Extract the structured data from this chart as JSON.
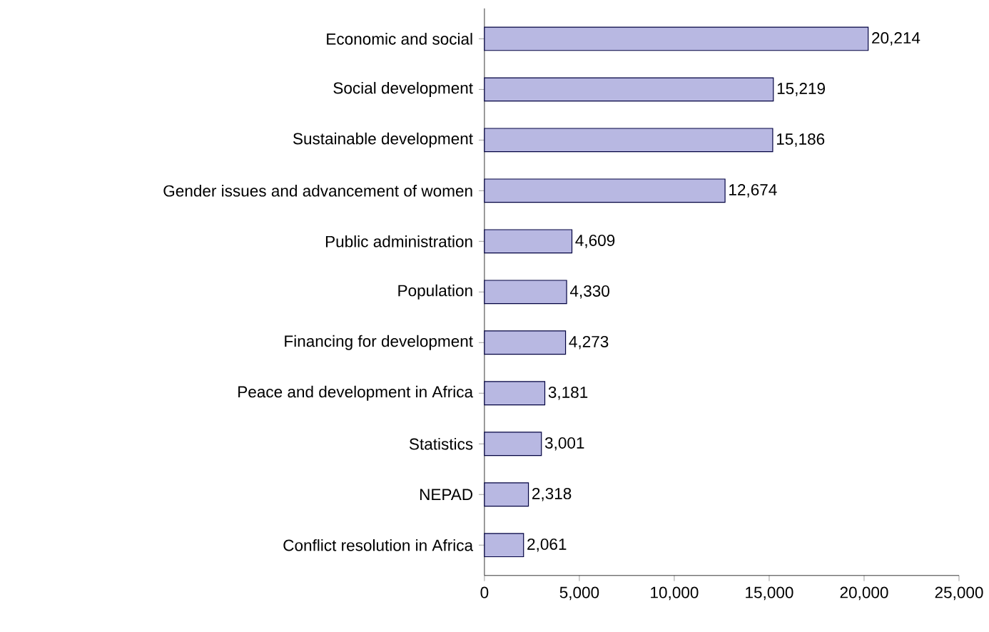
{
  "chart_data": {
    "type": "bar",
    "orientation": "horizontal",
    "categories": [
      "Economic and social",
      "Social development",
      "Sustainable development",
      "Gender issues and advancement of women",
      "Public administration",
      "Population",
      "Financing for development",
      "Peace and development in Africa",
      "Statistics",
      "NEPAD",
      "Conflict resolution in Africa"
    ],
    "values": [
      20214,
      15219,
      15186,
      12674,
      4609,
      4330,
      4273,
      3181,
      3001,
      2318,
      2061
    ],
    "value_labels": [
      "20,214",
      "15,219",
      "15,186",
      "12,674",
      "4,609",
      "4,330",
      "4,273",
      "3,181",
      "3,001",
      "2,318",
      "2,061"
    ],
    "color": "#b8b8e2",
    "xlim": [
      0,
      25000
    ],
    "xticks": [
      {
        "value": 0,
        "label": "0"
      },
      {
        "value": 5000,
        "label": "5,000"
      },
      {
        "value": 10000,
        "label": "10,000"
      },
      {
        "value": 15000,
        "label": "15,000"
      },
      {
        "value": 20000,
        "label": "20,000"
      },
      {
        "value": 25000,
        "label": "25,000"
      }
    ],
    "grid": false
  }
}
